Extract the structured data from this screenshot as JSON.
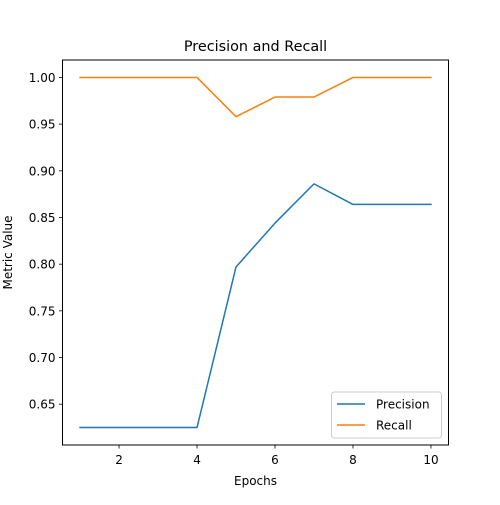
{
  "chart_data": {
    "type": "line",
    "title": "Precision and Recall",
    "xlabel": "Epochs",
    "ylabel": "Metric Value",
    "x": [
      1,
      2,
      3,
      4,
      5,
      6,
      7,
      8,
      9,
      10
    ],
    "xlim": [
      0.55,
      10.45
    ],
    "ylim": [
      0.6063,
      1.0187
    ],
    "xticks": [
      2,
      4,
      6,
      8,
      10
    ],
    "xtick_labels": [
      "2",
      "4",
      "6",
      "8",
      "10"
    ],
    "yticks": [
      0.65,
      0.7,
      0.75,
      0.8,
      0.85,
      0.9,
      0.95,
      1.0
    ],
    "ytick_labels": [
      "0.65",
      "0.70",
      "0.75",
      "0.80",
      "0.85",
      "0.90",
      "0.95",
      "1.00"
    ],
    "grid": false,
    "legend_position": "lower right",
    "series": [
      {
        "name": "Precision",
        "color": "#1f77b4",
        "values": [
          0.625,
          0.625,
          0.625,
          0.625,
          0.797,
          0.844,
          0.886,
          0.864,
          0.864,
          0.864
        ]
      },
      {
        "name": "Recall",
        "color": "#ff7f0e",
        "values": [
          1.0,
          1.0,
          1.0,
          1.0,
          0.958,
          0.979,
          0.979,
          1.0,
          1.0,
          1.0
        ]
      }
    ]
  }
}
